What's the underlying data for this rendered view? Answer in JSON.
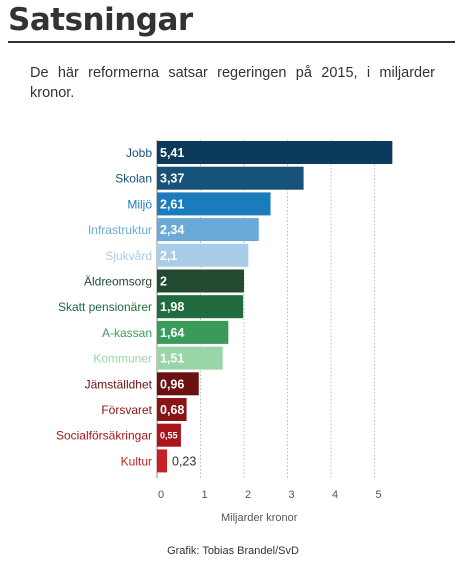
{
  "title": "Satsningar",
  "subtitle": "De här reformerna satsar regeringen på 2015, i miljarder kronor.",
  "credit": "Grafik: Tobias Brandel/SvD",
  "chart_data": {
    "type": "bar",
    "orientation": "horizontal",
    "categories": [
      "Jobb",
      "Skolan",
      "Miljö",
      "Infrastruktur",
      "Sjukvård",
      "Äldreomsorg",
      "Skatt pensionärer",
      "A-kassan",
      "Kommuner",
      "Jämställdhet",
      "Försvaret",
      "Socialförsäkringar",
      "Kultur"
    ],
    "values": [
      5.41,
      3.37,
      2.61,
      2.34,
      2.1,
      2,
      1.98,
      1.64,
      1.51,
      0.96,
      0.68,
      0.55,
      0.23
    ],
    "value_labels": [
      "5,41",
      "3,37",
      "2,61",
      "2,34",
      "2,1",
      "2",
      "1,98",
      "1,64",
      "1,51",
      "0,96",
      "0,68",
      "0,55",
      "0,23"
    ],
    "colors": [
      "#0b3a5a",
      "#17527a",
      "#1b7cbd",
      "#6aaad8",
      "#a9cde9",
      "#234a30",
      "#1f6a3e",
      "#3a9a5a",
      "#98d6a8",
      "#6a0f12",
      "#8a1316",
      "#a8161b",
      "#c81f24"
    ],
    "label_colors": [
      "#17527a",
      "#17527a",
      "#1b7cbd",
      "#6aaad8",
      "#a9cde9",
      "#234a30",
      "#1f6a3e",
      "#3a9a5a",
      "#98d6a8",
      "#6a0f12",
      "#8a1316",
      "#a8161b",
      "#c81f24"
    ],
    "xlabel": "Miljarder kronor",
    "xlim": [
      0,
      5.5
    ],
    "xticks": [
      0,
      1,
      2,
      3,
      4,
      5
    ],
    "grid": true
  }
}
